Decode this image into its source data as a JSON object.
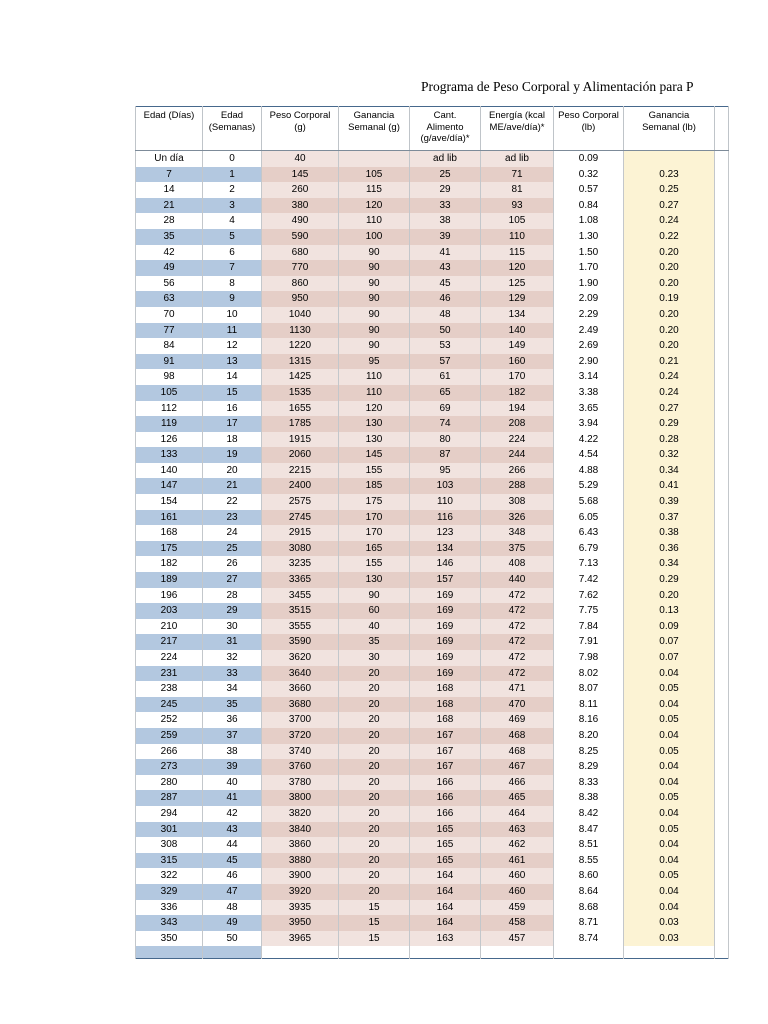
{
  "page": {
    "title": "Programa de Peso Corporal y Alimentación para P"
  },
  "colors": {
    "row_blue": "#b3c8e0",
    "row_pink_dark": "#e5cec7",
    "row_pink_light": "#f1e3df",
    "col_yellow": "#fcf3d4",
    "table_border": "#46688c"
  },
  "table": {
    "columns": [
      {
        "key": "edad-dias",
        "label": "Edad (Días)"
      },
      {
        "key": "edad-semanas",
        "label": "Edad\n(Semanas)"
      },
      {
        "key": "peso-corporal-g",
        "label": "Peso Corporal\n(g)"
      },
      {
        "key": "ganancia-semanal-g",
        "label": "Ganancia\nSemanal (g)"
      },
      {
        "key": "cant-alimento",
        "label": "Cant.\nAlimento\n(g/ave/día)*"
      },
      {
        "key": "energia",
        "label": "Energía (kcal\nME/ave/día)*"
      },
      {
        "key": "peso-corporal-lb",
        "label": "Peso Corporal\n(lb)"
      },
      {
        "key": "ganancia-semanal-lb",
        "label": "Ganancia\nSemanal (lb)"
      },
      {
        "key": "spacer",
        "label": ""
      }
    ],
    "rows": [
      [
        "Un día",
        "0",
        "40",
        "",
        "ad lib",
        "ad lib",
        "0.09",
        ""
      ],
      [
        "7",
        "1",
        "145",
        "105",
        "25",
        "71",
        "0.32",
        "0.23"
      ],
      [
        "14",
        "2",
        "260",
        "115",
        "29",
        "81",
        "0.57",
        "0.25"
      ],
      [
        "21",
        "3",
        "380",
        "120",
        "33",
        "93",
        "0.84",
        "0.27"
      ],
      [
        "28",
        "4",
        "490",
        "110",
        "38",
        "105",
        "1.08",
        "0.24"
      ],
      [
        "35",
        "5",
        "590",
        "100",
        "39",
        "110",
        "1.30",
        "0.22"
      ],
      [
        "42",
        "6",
        "680",
        "90",
        "41",
        "115",
        "1.50",
        "0.20"
      ],
      [
        "49",
        "7",
        "770",
        "90",
        "43",
        "120",
        "1.70",
        "0.20"
      ],
      [
        "56",
        "8",
        "860",
        "90",
        "45",
        "125",
        "1.90",
        "0.20"
      ],
      [
        "63",
        "9",
        "950",
        "90",
        "46",
        "129",
        "2.09",
        "0.19"
      ],
      [
        "70",
        "10",
        "1040",
        "90",
        "48",
        "134",
        "2.29",
        "0.20"
      ],
      [
        "77",
        "11",
        "1130",
        "90",
        "50",
        "140",
        "2.49",
        "0.20"
      ],
      [
        "84",
        "12",
        "1220",
        "90",
        "53",
        "149",
        "2.69",
        "0.20"
      ],
      [
        "91",
        "13",
        "1315",
        "95",
        "57",
        "160",
        "2.90",
        "0.21"
      ],
      [
        "98",
        "14",
        "1425",
        "110",
        "61",
        "170",
        "3.14",
        "0.24"
      ],
      [
        "105",
        "15",
        "1535",
        "110",
        "65",
        "182",
        "3.38",
        "0.24"
      ],
      [
        "112",
        "16",
        "1655",
        "120",
        "69",
        "194",
        "3.65",
        "0.27"
      ],
      [
        "119",
        "17",
        "1785",
        "130",
        "74",
        "208",
        "3.94",
        "0.29"
      ],
      [
        "126",
        "18",
        "1915",
        "130",
        "80",
        "224",
        "4.22",
        "0.28"
      ],
      [
        "133",
        "19",
        "2060",
        "145",
        "87",
        "244",
        "4.54",
        "0.32"
      ],
      [
        "140",
        "20",
        "2215",
        "155",
        "95",
        "266",
        "4.88",
        "0.34"
      ],
      [
        "147",
        "21",
        "2400",
        "185",
        "103",
        "288",
        "5.29",
        "0.41"
      ],
      [
        "154",
        "22",
        "2575",
        "175",
        "110",
        "308",
        "5.68",
        "0.39"
      ],
      [
        "161",
        "23",
        "2745",
        "170",
        "116",
        "326",
        "6.05",
        "0.37"
      ],
      [
        "168",
        "24",
        "2915",
        "170",
        "123",
        "348",
        "6.43",
        "0.38"
      ],
      [
        "175",
        "25",
        "3080",
        "165",
        "134",
        "375",
        "6.79",
        "0.36"
      ],
      [
        "182",
        "26",
        "3235",
        "155",
        "146",
        "408",
        "7.13",
        "0.34"
      ],
      [
        "189",
        "27",
        "3365",
        "130",
        "157",
        "440",
        "7.42",
        "0.29"
      ],
      [
        "196",
        "28",
        "3455",
        "90",
        "169",
        "472",
        "7.62",
        "0.20"
      ],
      [
        "203",
        "29",
        "3515",
        "60",
        "169",
        "472",
        "7.75",
        "0.13"
      ],
      [
        "210",
        "30",
        "3555",
        "40",
        "169",
        "472",
        "7.84",
        "0.09"
      ],
      [
        "217",
        "31",
        "3590",
        "35",
        "169",
        "472",
        "7.91",
        "0.07"
      ],
      [
        "224",
        "32",
        "3620",
        "30",
        "169",
        "472",
        "7.98",
        "0.07"
      ],
      [
        "231",
        "33",
        "3640",
        "20",
        "169",
        "472",
        "8.02",
        "0.04"
      ],
      [
        "238",
        "34",
        "3660",
        "20",
        "168",
        "471",
        "8.07",
        "0.05"
      ],
      [
        "245",
        "35",
        "3680",
        "20",
        "168",
        "470",
        "8.11",
        "0.04"
      ],
      [
        "252",
        "36",
        "3700",
        "20",
        "168",
        "469",
        "8.16",
        "0.05"
      ],
      [
        "259",
        "37",
        "3720",
        "20",
        "167",
        "468",
        "8.20",
        "0.04"
      ],
      [
        "266",
        "38",
        "3740",
        "20",
        "167",
        "468",
        "8.25",
        "0.05"
      ],
      [
        "273",
        "39",
        "3760",
        "20",
        "167",
        "467",
        "8.29",
        "0.04"
      ],
      [
        "280",
        "40",
        "3780",
        "20",
        "166",
        "466",
        "8.33",
        "0.04"
      ],
      [
        "287",
        "41",
        "3800",
        "20",
        "166",
        "465",
        "8.38",
        "0.05"
      ],
      [
        "294",
        "42",
        "3820",
        "20",
        "166",
        "464",
        "8.42",
        "0.04"
      ],
      [
        "301",
        "43",
        "3840",
        "20",
        "165",
        "463",
        "8.47",
        "0.05"
      ],
      [
        "308",
        "44",
        "3860",
        "20",
        "165",
        "462",
        "8.51",
        "0.04"
      ],
      [
        "315",
        "45",
        "3880",
        "20",
        "165",
        "461",
        "8.55",
        "0.04"
      ],
      [
        "322",
        "46",
        "3900",
        "20",
        "164",
        "460",
        "8.60",
        "0.05"
      ],
      [
        "329",
        "47",
        "3920",
        "20",
        "164",
        "460",
        "8.64",
        "0.04"
      ],
      [
        "336",
        "48",
        "3935",
        "15",
        "164",
        "459",
        "8.68",
        "0.04"
      ],
      [
        "343",
        "49",
        "3950",
        "15",
        "164",
        "458",
        "8.71",
        "0.03"
      ],
      [
        "350",
        "50",
        "3965",
        "15",
        "163",
        "457",
        "8.74",
        "0.03"
      ]
    ],
    "footer_strip": true
  }
}
